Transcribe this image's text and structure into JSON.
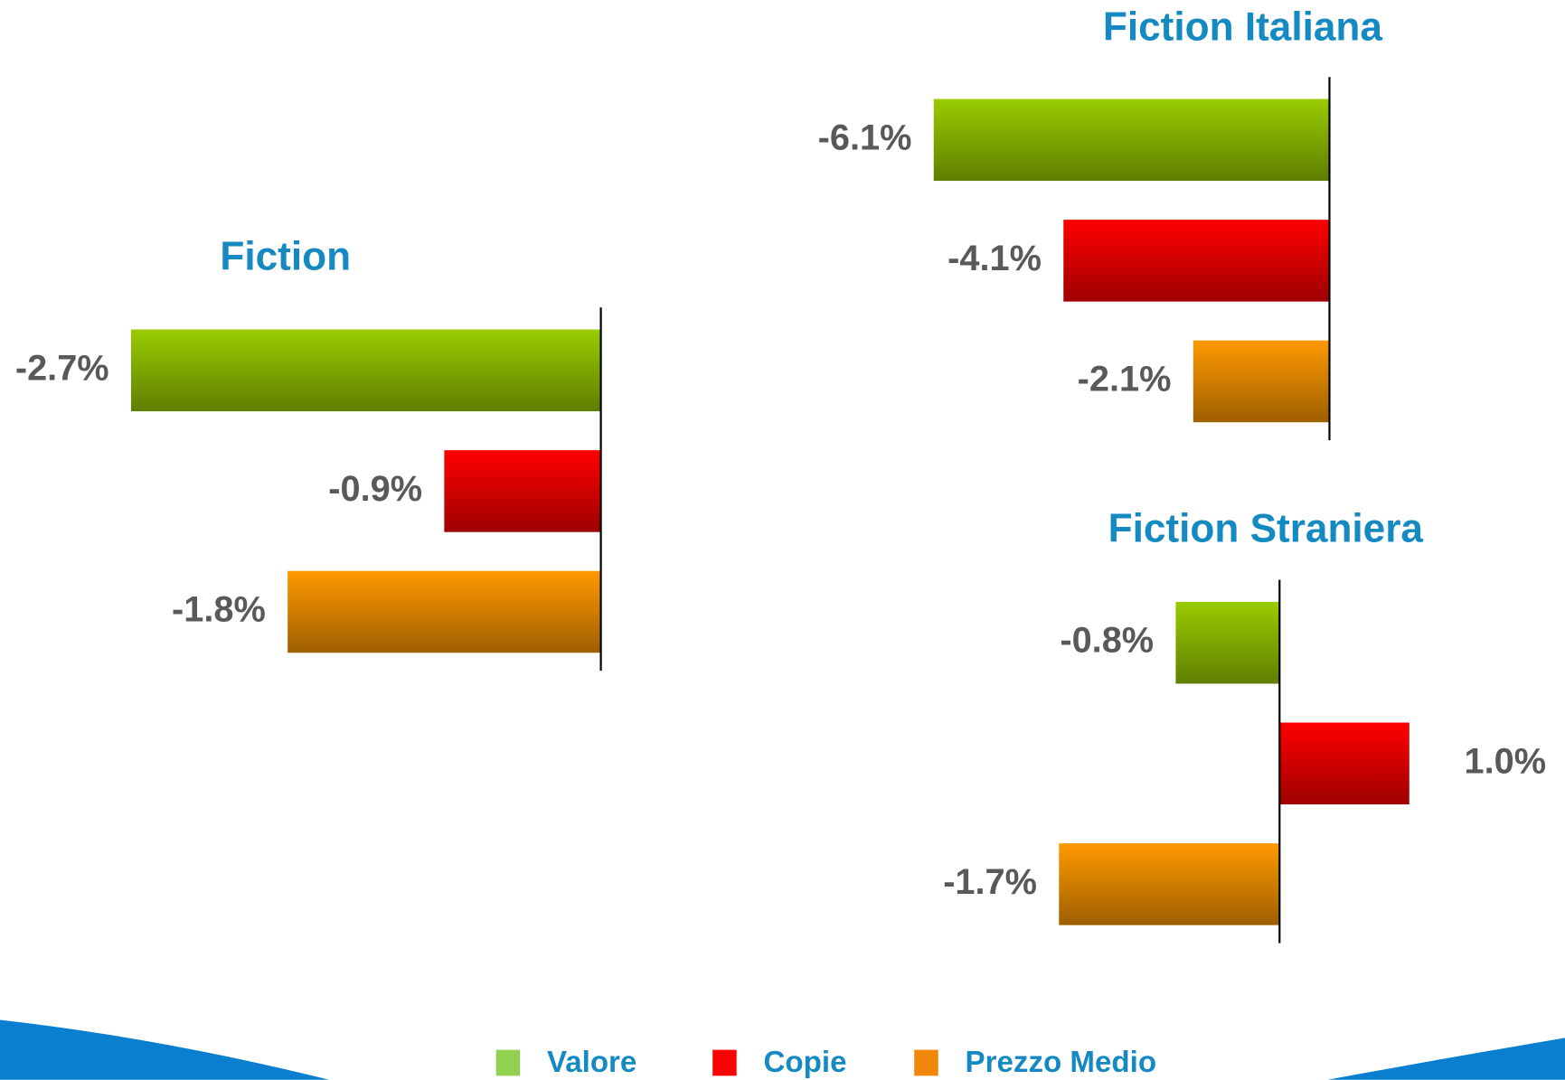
{
  "chart_data": [
    {
      "type": "bar",
      "title": "Fiction",
      "values": [
        -2.7,
        -0.9,
        -1.8
      ],
      "value_labels": [
        "-2.7%",
        "-0.9%",
        "-1.8%"
      ],
      "colors": [
        "#99cc00",
        "#ff0000",
        "#ff9900"
      ],
      "xlim": [
        -3,
        0
      ]
    },
    {
      "type": "bar",
      "title": "Fiction Italiana",
      "values": [
        -6.1,
        -4.1,
        -2.1
      ],
      "value_labels": [
        "-6.1%",
        "-4.1%",
        "-2.1%"
      ],
      "colors": [
        "#99cc00",
        "#ff0000",
        "#ff9900"
      ],
      "xlim": [
        -7,
        0
      ]
    },
    {
      "type": "bar",
      "title": "Fiction Straniera",
      "values": [
        -0.8,
        1.0,
        -1.7
      ],
      "value_labels": [
        "-0.8%",
        "1.0%",
        "-1.7%"
      ],
      "colors": [
        "#99cc00",
        "#ff0000",
        "#ff9900"
      ],
      "xlim": [
        -2,
        1.5
      ]
    }
  ],
  "legend": [
    {
      "name": "Valore",
      "color": "#92d050"
    },
    {
      "name": "Copie",
      "color": "#ff0000"
    },
    {
      "name": "Prezzo Medio",
      "color": "#f0860a"
    }
  ]
}
